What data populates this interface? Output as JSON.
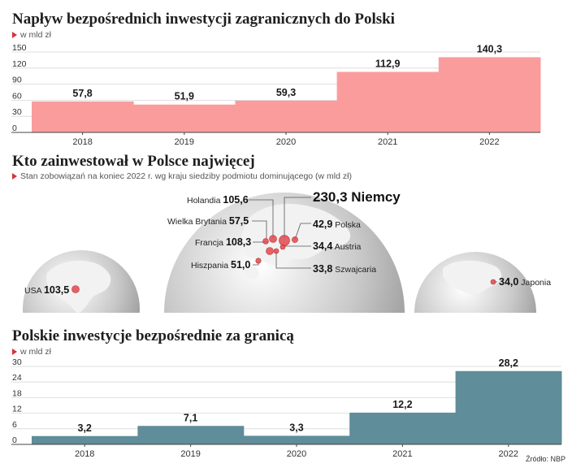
{
  "chart1": {
    "title": "Napływ bezpośrednich inwestycji zagranicznych do Polski",
    "subtitle": "w mld zł"
  },
  "map": {
    "title": "Kto zainwestował w Polsce najwięcej",
    "subtitle": "Stan zobowiązań na koniec 2022 r. wg kraju siedziby podmiotu dominującego (w mld zł)",
    "labels": {
      "usa": "USA",
      "usa_val": "103,5",
      "holandia": "Holandia",
      "holandia_val": "105,6",
      "wb": "Wielka Brytania",
      "wb_val": "57,5",
      "francja": "Francja",
      "francja_val": "108,3",
      "hiszpania": "Hiszpania",
      "hiszpania_val": "51,0",
      "niemcy": "230,3 Niemcy",
      "polska_val": "42,9",
      "polska": "Polska",
      "austria_val": "34,4",
      "austria": "Austria",
      "szwajcaria_val": "33,8",
      "szwajcaria": "Szwajcaria",
      "japonia_val": "34,0",
      "japonia": "Japonia"
    }
  },
  "chart2": {
    "title": "Polskie inwestycje bezpośrednie za granicą",
    "subtitle": "w mld zł"
  },
  "source": "Źródło: NBP",
  "colors": {
    "chart1_fill": "#fb9c9c",
    "chart2_fill": "#5f8d99",
    "accent": "#d9303a",
    "dot": "#e2484e"
  },
  "chart_data": [
    {
      "type": "bar",
      "title": "Napływ bezpośrednich inwestycji zagranicznych do Polski",
      "ylabel": "w mld zł",
      "categories": [
        "2018",
        "2019",
        "2020",
        "2021",
        "2022"
      ],
      "values": [
        57.8,
        51.9,
        59.3,
        112.9,
        140.3
      ],
      "value_labels": [
        "57,8",
        "51,9",
        "59,3",
        "112,9",
        "140,3"
      ],
      "yticks": [
        0,
        30,
        60,
        90,
        120,
        150
      ],
      "ylim": [
        0,
        150
      ],
      "grid": true
    },
    {
      "type": "bar",
      "title": "Polskie inwestycje bezpośrednie za granicą",
      "ylabel": "w mld zł",
      "categories": [
        "2018",
        "2019",
        "2020",
        "2021",
        "2022"
      ],
      "values": [
        3.2,
        7.1,
        3.3,
        12.2,
        28.2
      ],
      "value_labels": [
        "3,2",
        "7,1",
        "3,3",
        "12,2",
        "28,2"
      ],
      "yticks": [
        0,
        6,
        12,
        18,
        24,
        30
      ],
      "ylim": [
        0,
        30
      ],
      "grid": true
    }
  ]
}
